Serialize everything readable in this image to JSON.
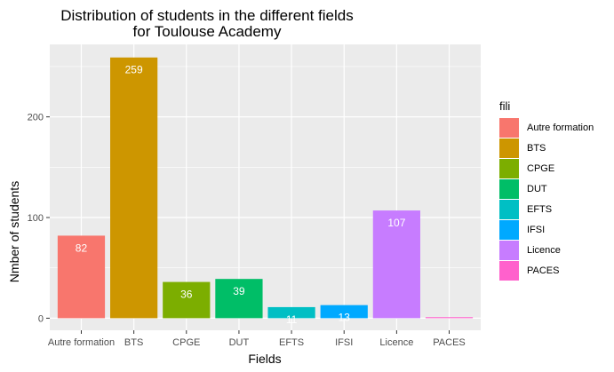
{
  "chart_data": {
    "type": "bar",
    "title_line1": "Distribution of students in the different fields",
    "title_line2": "for Toulouse Academy",
    "xlabel": "Fields",
    "ylabel": "Nmber of students",
    "categories": [
      "Autre formation",
      "BTS",
      "CPGE",
      "DUT",
      "EFTS",
      "IFSI",
      "Licence",
      "PACES"
    ],
    "values": [
      82,
      259,
      36,
      39,
      11,
      13,
      107,
      1
    ],
    "data_labels": [
      "82",
      "259",
      "36",
      "39",
      "11",
      "13",
      "107",
      ""
    ],
    "colors": [
      "#F8766D",
      "#CD9600",
      "#7CAE00",
      "#00BE67",
      "#00BFC4",
      "#00A9FF",
      "#C77CFF",
      "#FF61CC"
    ],
    "ylim": [
      -12,
      272
    ],
    "yticks": [
      0,
      100,
      200
    ],
    "ytick_labels": [
      "0",
      "100",
      "200"
    ],
    "grid": true,
    "legend": {
      "title": "fili",
      "position": "right",
      "entries": [
        "Autre formation",
        "BTS",
        "CPGE",
        "DUT",
        "EFTS",
        "IFSI",
        "Licence",
        "PACES"
      ]
    }
  }
}
